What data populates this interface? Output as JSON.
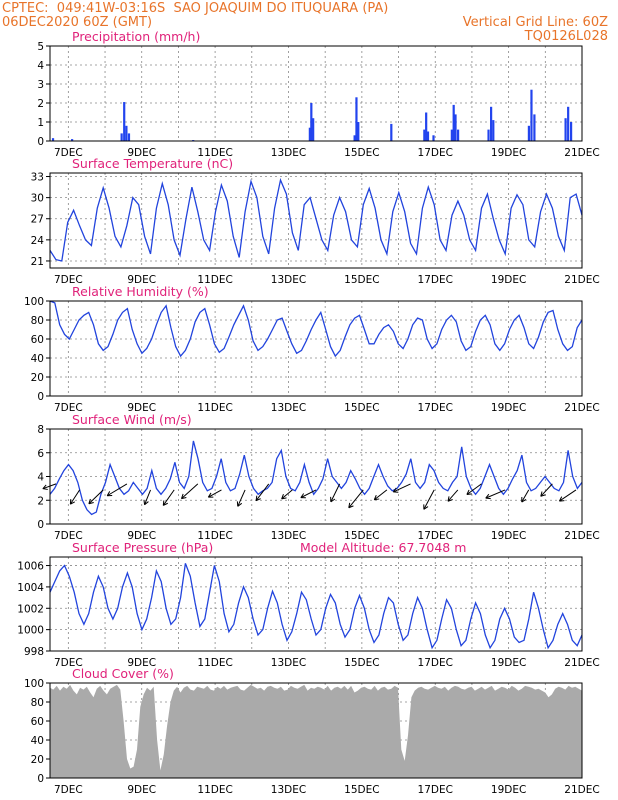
{
  "header": {
    "line1_left": "CPTEC:  049:41W-03:16S  SAO JOAQUIM DO ITUQUARA (PA)",
    "line2_left": "06DEC2020 60Z (GMT)",
    "line2_right": "Vertical Grid Line: 60Z",
    "line3_right": "TQ0126L028"
  },
  "colors": {
    "header": "#e8742a",
    "title": "#e0227a",
    "series": "#2244dd",
    "cloud": "#aaaaaa"
  },
  "x_ticks": [
    "7DEC",
    "9DEC",
    "11DEC",
    "13DEC",
    "15DEC",
    "17DEC",
    "19DEC",
    "21DEC"
  ],
  "chart_data": [
    {
      "id": "precip",
      "type": "bar",
      "title": "Precipitation (mm/h)",
      "ylim": [
        0,
        5
      ],
      "yticks": [
        0,
        1,
        2,
        3,
        4,
        5
      ],
      "x_range_days": [
        6.5,
        21.0
      ],
      "points": [
        [
          6.58,
          0.15
        ],
        [
          7.1,
          0.1
        ],
        [
          8.45,
          0.4
        ],
        [
          8.52,
          2.05
        ],
        [
          8.58,
          0.8
        ],
        [
          8.65,
          0.4
        ],
        [
          10.4,
          0.05
        ],
        [
          13.58,
          0.7
        ],
        [
          13.62,
          2.0
        ],
        [
          13.67,
          1.2
        ],
        [
          14.8,
          0.3
        ],
        [
          14.85,
          2.3
        ],
        [
          14.9,
          1.0
        ],
        [
          15.8,
          0.9
        ],
        [
          16.7,
          0.6
        ],
        [
          16.75,
          1.5
        ],
        [
          16.8,
          0.5
        ],
        [
          16.95,
          0.3
        ],
        [
          17.45,
          0.6
        ],
        [
          17.5,
          1.9
        ],
        [
          17.55,
          1.4
        ],
        [
          17.62,
          0.6
        ],
        [
          18.45,
          0.6
        ],
        [
          18.52,
          1.8
        ],
        [
          18.58,
          1.1
        ],
        [
          19.55,
          0.8
        ],
        [
          19.62,
          2.7
        ],
        [
          19.7,
          1.4
        ],
        [
          20.55,
          1.2
        ],
        [
          20.62,
          1.8
        ],
        [
          20.7,
          1.0
        ]
      ]
    },
    {
      "id": "temp",
      "type": "line",
      "title": "Surface Temperature (nC)",
      "ylim": [
        20,
        33.5
      ],
      "yticks": [
        21,
        24,
        27,
        30,
        33
      ],
      "series_y": [
        22.5,
        21.2,
        21.0,
        26.5,
        28.2,
        26.0,
        24.0,
        23.2,
        28.5,
        31.4,
        28.5,
        24.5,
        23.0,
        26.0,
        30.0,
        29.0,
        24.5,
        22.0,
        28.5,
        32.0,
        29.0,
        24.0,
        21.8,
        27.0,
        31.5,
        28.0,
        24.0,
        22.5,
        28.0,
        31.8,
        29.5,
        24.5,
        21.5,
        28.0,
        32.3,
        30.0,
        24.5,
        22.0,
        28.5,
        32.5,
        30.5,
        25.0,
        22.5,
        29.0,
        30.0,
        27.0,
        24.0,
        22.5,
        27.5,
        30.0,
        28.0,
        24.0,
        23.0,
        29.0,
        31.3,
        28.5,
        24.0,
        22.0,
        28.0,
        30.7,
        28.0,
        23.5,
        22.0,
        28.5,
        31.5,
        29.0,
        24.0,
        22.5,
        27.5,
        29.5,
        27.5,
        24.0,
        22.5,
        28.5,
        30.5,
        27.0,
        24.0,
        22.0,
        28.5,
        30.4,
        29.0,
        24.0,
        23.0,
        28.0,
        30.5,
        28.5,
        24.5,
        22.5,
        30.0,
        30.5,
        27.5
      ]
    },
    {
      "id": "rh",
      "type": "line",
      "title": "Relative Humidity (%)",
      "ylim": [
        0,
        100
      ],
      "yticks": [
        0,
        20,
        40,
        60,
        80,
        100
      ],
      "series_y": [
        100,
        98,
        75,
        65,
        60,
        70,
        80,
        85,
        88,
        75,
        55,
        48,
        52,
        65,
        80,
        88,
        92,
        70,
        55,
        45,
        50,
        60,
        75,
        88,
        95,
        72,
        52,
        42,
        48,
        60,
        78,
        88,
        92,
        75,
        55,
        46,
        50,
        62,
        75,
        85,
        95,
        80,
        58,
        48,
        52,
        60,
        70,
        80,
        82,
        68,
        55,
        45,
        48,
        58,
        70,
        80,
        88,
        70,
        52,
        42,
        48,
        62,
        75,
        82,
        85,
        70,
        55,
        55,
        65,
        72,
        75,
        68,
        55,
        50,
        60,
        75,
        82,
        80,
        60,
        50,
        55,
        70,
        80,
        85,
        78,
        58,
        48,
        52,
        68,
        80,
        85,
        75,
        55,
        48,
        55,
        70,
        80,
        85,
        72,
        55,
        50,
        62,
        78,
        88,
        90,
        70,
        55,
        48,
        52,
        72,
        80
      ]
    },
    {
      "id": "wind",
      "type": "line",
      "title": "Surface Wind (m/s)",
      "ylim": [
        0,
        8
      ],
      "yticks": [
        0,
        2,
        4,
        6,
        8
      ],
      "series_y": [
        2.5,
        3.0,
        3.8,
        4.5,
        5.0,
        4.5,
        3.5,
        2.0,
        1.2,
        0.8,
        1.0,
        2.5,
        3.5,
        5.0,
        4.0,
        3.0,
        2.5,
        2.8,
        3.5,
        3.0,
        2.5,
        3.0,
        4.5,
        3.0,
        2.5,
        3.0,
        3.8,
        5.2,
        3.5,
        3.0,
        4.0,
        7.0,
        5.5,
        3.5,
        2.8,
        3.0,
        4.0,
        5.5,
        3.5,
        2.8,
        3.0,
        4.2,
        5.8,
        4.0,
        3.0,
        2.5,
        2.8,
        3.0,
        3.5,
        5.5,
        6.2,
        4.0,
        3.0,
        2.8,
        3.5,
        5.0,
        3.5,
        2.5,
        3.0,
        3.8,
        5.5,
        4.0,
        3.5,
        3.0,
        3.5,
        4.5,
        3.8,
        3.0,
        2.5,
        3.0,
        4.0,
        5.0,
        4.0,
        3.2,
        2.8,
        3.0,
        3.5,
        4.2,
        5.5,
        3.5,
        3.0,
        3.5,
        5.0,
        4.5,
        3.5,
        3.0,
        2.8,
        3.5,
        4.0,
        6.5,
        4.0,
        3.0,
        2.5,
        3.0,
        4.0,
        5.0,
        4.0,
        3.0,
        2.5,
        3.0,
        3.8,
        4.5,
        5.8,
        3.5,
        2.8,
        3.0,
        3.5,
        4.0,
        3.5,
        3.0,
        2.8,
        3.5,
        6.2,
        4.0,
        3.0,
        3.5
      ]
    },
    {
      "id": "pressure",
      "type": "line",
      "title": "Surface Pressure (hPa)",
      "subtitle": "Model Altitude: 67.7048 m",
      "ylim": [
        998,
        1006.8
      ],
      "yticks": [
        998,
        1000,
        1002,
        1004,
        1006
      ],
      "series_y": [
        1003.5,
        1004.5,
        1005.5,
        1006.0,
        1005.0,
        1003.5,
        1001.5,
        1000.5,
        1001.5,
        1003.5,
        1005.0,
        1004.0,
        1002.0,
        1001.0,
        1002.0,
        1004.0,
        1005.3,
        1004.0,
        1001.5,
        1000.0,
        1001.0,
        1003.0,
        1005.5,
        1004.5,
        1002.0,
        1000.5,
        1001.0,
        1003.0,
        1006.2,
        1005.0,
        1002.5,
        1000.3,
        1001.0,
        1003.5,
        1006.0,
        1004.5,
        1001.5,
        999.8,
        1000.5,
        1002.5,
        1004.0,
        1003.0,
        1001.0,
        999.5,
        1000.0,
        1002.0,
        1003.6,
        1002.5,
        1000.5,
        999.0,
        999.8,
        1001.5,
        1003.5,
        1002.8,
        1001.0,
        999.5,
        1000.0,
        1002.0,
        1003.3,
        1002.5,
        1000.5,
        999.3,
        1000.0,
        1002.0,
        1003.2,
        1002.0,
        1000.0,
        998.8,
        999.5,
        1001.5,
        1003.0,
        1002.5,
        1000.5,
        999.0,
        999.5,
        1001.5,
        1003.0,
        1002.0,
        1000.0,
        998.3,
        999.0,
        1001.0,
        1002.8,
        1002.0,
        1000.0,
        998.5,
        999.0,
        1001.0,
        1002.5,
        1001.5,
        999.5,
        998.3,
        999.0,
        1001.0,
        1002.0,
        1001.0,
        999.3,
        998.8,
        999.0,
        1001.0,
        1003.5,
        1002.0,
        1000.0,
        998.3,
        999.0,
        1000.5,
        1001.5,
        1000.5,
        999.0,
        998.5,
        999.5
      ]
    },
    {
      "id": "cloud",
      "type": "area",
      "title": "Cloud Cover (%)",
      "ylim": [
        0,
        100
      ],
      "yticks": [
        0,
        20,
        40,
        60,
        80,
        100
      ],
      "series_y": [
        95,
        93,
        97,
        92,
        96,
        94,
        98,
        92,
        88,
        95,
        93,
        96,
        90,
        85,
        94,
        97,
        92,
        88,
        94,
        96,
        98,
        93,
        60,
        20,
        10,
        12,
        30,
        75,
        88,
        95,
        92,
        96,
        40,
        8,
        25,
        55,
        80,
        92,
        96,
        90,
        95,
        97,
        93,
        92,
        96,
        95,
        94,
        97,
        93,
        92,
        96,
        94,
        97,
        93,
        95,
        96,
        97,
        93,
        92,
        95,
        98,
        96,
        94,
        95,
        92,
        96,
        97,
        95,
        94,
        96,
        92,
        93,
        97,
        95,
        94,
        96,
        98,
        92,
        95,
        94,
        96,
        95,
        93,
        97,
        92,
        95,
        96,
        94,
        97,
        93,
        97,
        90,
        92,
        95,
        96,
        94,
        93,
        97,
        92,
        95,
        96,
        93,
        94,
        97,
        95,
        30,
        18,
        45,
        85,
        92,
        95,
        96,
        94,
        93,
        95,
        97,
        95,
        94,
        96,
        92,
        95,
        97,
        96,
        94,
        93,
        95,
        96,
        92,
        94,
        96,
        93,
        95,
        97,
        92,
        94,
        96,
        95,
        93,
        97,
        95,
        92,
        94,
        97,
        96,
        95,
        93,
        94,
        92,
        90,
        85,
        88,
        94,
        96,
        95,
        93,
        97,
        95,
        96,
        94,
        92
      ]
    }
  ]
}
